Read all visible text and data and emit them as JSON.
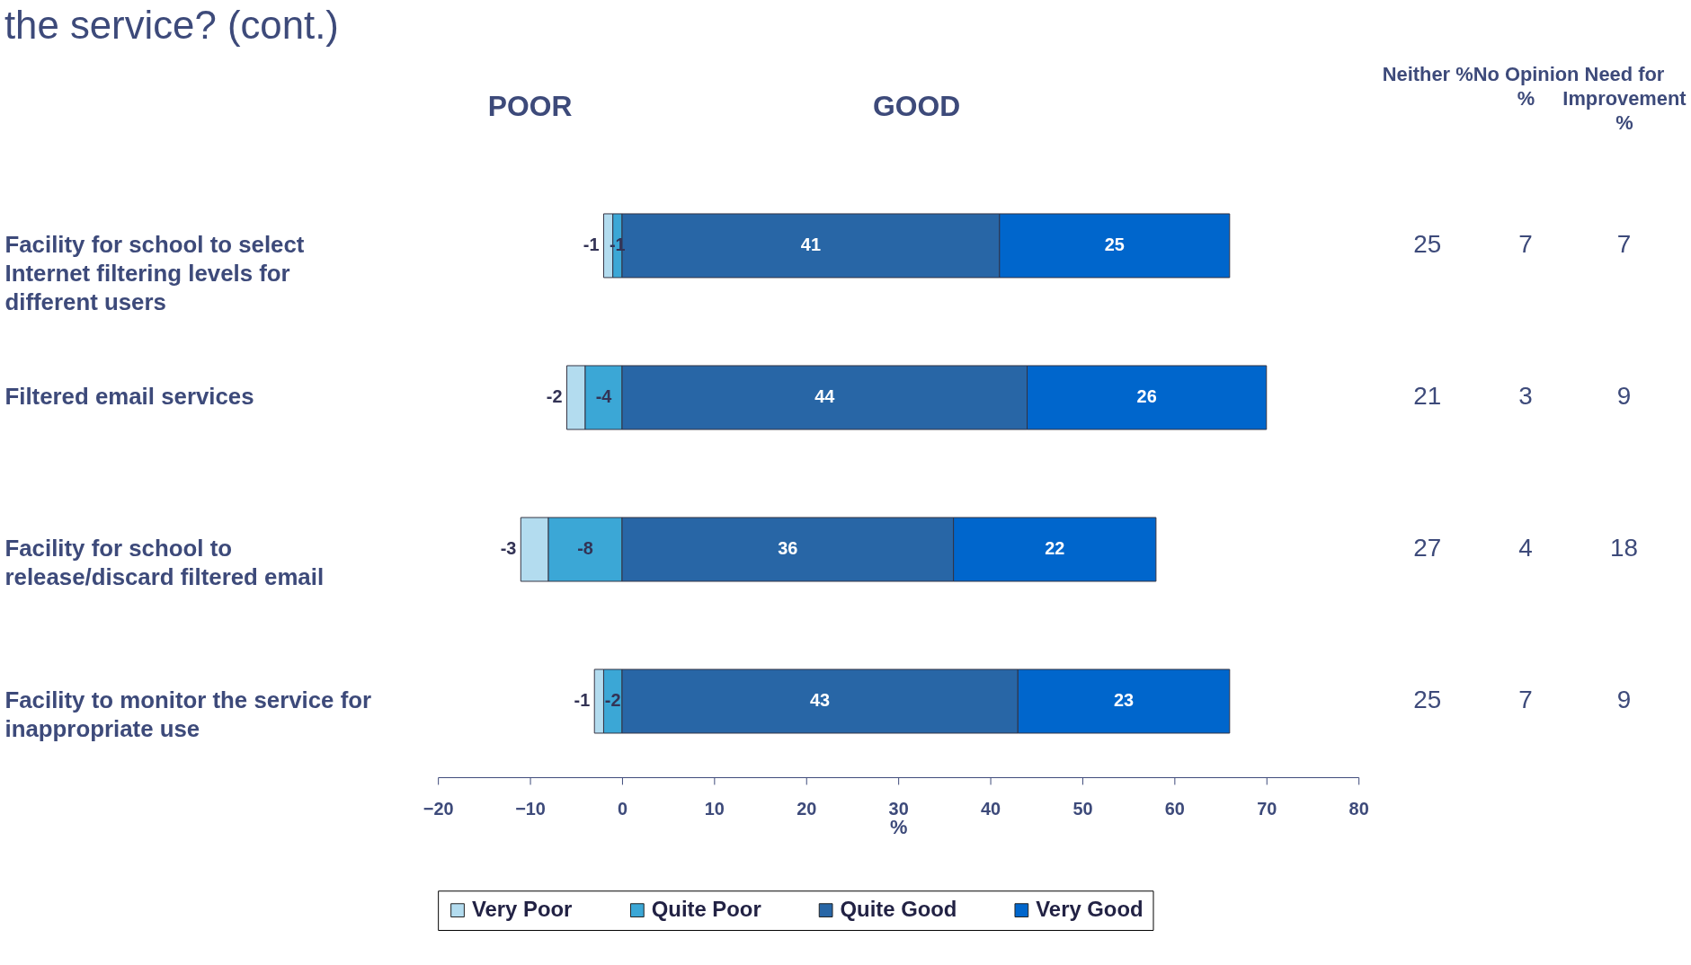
{
  "chart_data": {
    "type": "bar",
    "orientation": "horizontal",
    "stacked": true,
    "title": "the service? (cont.)",
    "xlabel": "%",
    "categories": [
      "Facility for school to select Internet filtering levels for different users",
      "Filtered email services",
      "Facility for school to release/discard filtered email",
      "Facility to monitor the service for inappropriate use"
    ],
    "series": [
      {
        "name": "Very Poor",
        "color": "#b3dcef",
        "values": [
          -1,
          -2,
          -3,
          -1
        ]
      },
      {
        "name": "Quite Poor",
        "color": "#3ba7d6",
        "values": [
          -1,
          -4,
          -8,
          -2
        ]
      },
      {
        "name": "Quite Good",
        "color": "#2866a6",
        "values": [
          41,
          44,
          36,
          43
        ]
      },
      {
        "name": "Very Good",
        "color": "#0066cc",
        "values": [
          25,
          26,
          22,
          23
        ]
      }
    ],
    "xlim": [
      -20,
      80
    ],
    "xticks": [
      -20,
      -10,
      0,
      10,
      20,
      30,
      40,
      50,
      60,
      70,
      80
    ],
    "data_labels": true,
    "legend": "bottom",
    "grid": false,
    "annotations": [
      "POOR",
      "GOOD",
      "Neither %",
      "No Opinion %",
      "Need for Improvement %",
      "25",
      "7",
      "7",
      "21",
      "3",
      "9",
      "27",
      "4",
      "18",
      "25",
      "7",
      "9"
    ]
  }
}
